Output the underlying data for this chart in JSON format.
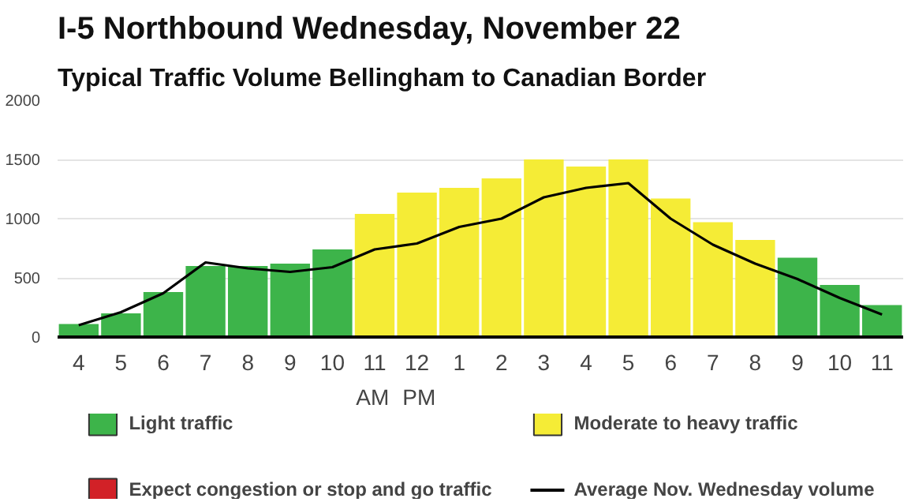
{
  "chart_data": {
    "type": "bar",
    "title": "I-5 Northbound Wednesday, November 22",
    "subtitle": "Typical Traffic Volume Bellingham to Canadian Border",
    "categories": [
      "4",
      "5",
      "6",
      "7",
      "8",
      "9",
      "10",
      "11",
      "12",
      "1",
      "2",
      "3",
      "4",
      "5",
      "6",
      "7",
      "8",
      "9",
      "10",
      "11"
    ],
    "series": [
      {
        "name": "Light traffic",
        "color": "#3db44a",
        "values": [
          110,
          200,
          380,
          600,
          600,
          620,
          740,
          null,
          null,
          null,
          null,
          null,
          null,
          null,
          null,
          null,
          null,
          670,
          440,
          270
        ]
      },
      {
        "name": "Moderate to heavy traffic",
        "color": "#f5ec36",
        "values": [
          null,
          null,
          null,
          null,
          null,
          null,
          null,
          1040,
          1220,
          1260,
          1340,
          1500,
          1440,
          1500,
          1170,
          970,
          820,
          null,
          null,
          null
        ]
      },
      {
        "name": "Expect congestion or stop and go traffic",
        "color": "#d22127",
        "values": [
          null,
          null,
          null,
          null,
          null,
          null,
          null,
          null,
          null,
          null,
          null,
          null,
          null,
          null,
          null,
          null,
          null,
          null,
          null,
          null
        ]
      },
      {
        "name": "Average Nov. Wednesday volume",
        "type": "line",
        "color": "#000000",
        "values": [
          100,
          210,
          370,
          630,
          580,
          550,
          590,
          740,
          790,
          930,
          1000,
          1180,
          1260,
          1300,
          1000,
          780,
          620,
          490,
          330,
          190
        ]
      }
    ],
    "ylim": [
      0,
      2000
    ],
    "yticks": [
      0,
      500,
      1000,
      1500,
      2000
    ],
    "grid": "y",
    "legend": "bottom",
    "annotations": [
      "AM",
      "PM"
    ]
  }
}
